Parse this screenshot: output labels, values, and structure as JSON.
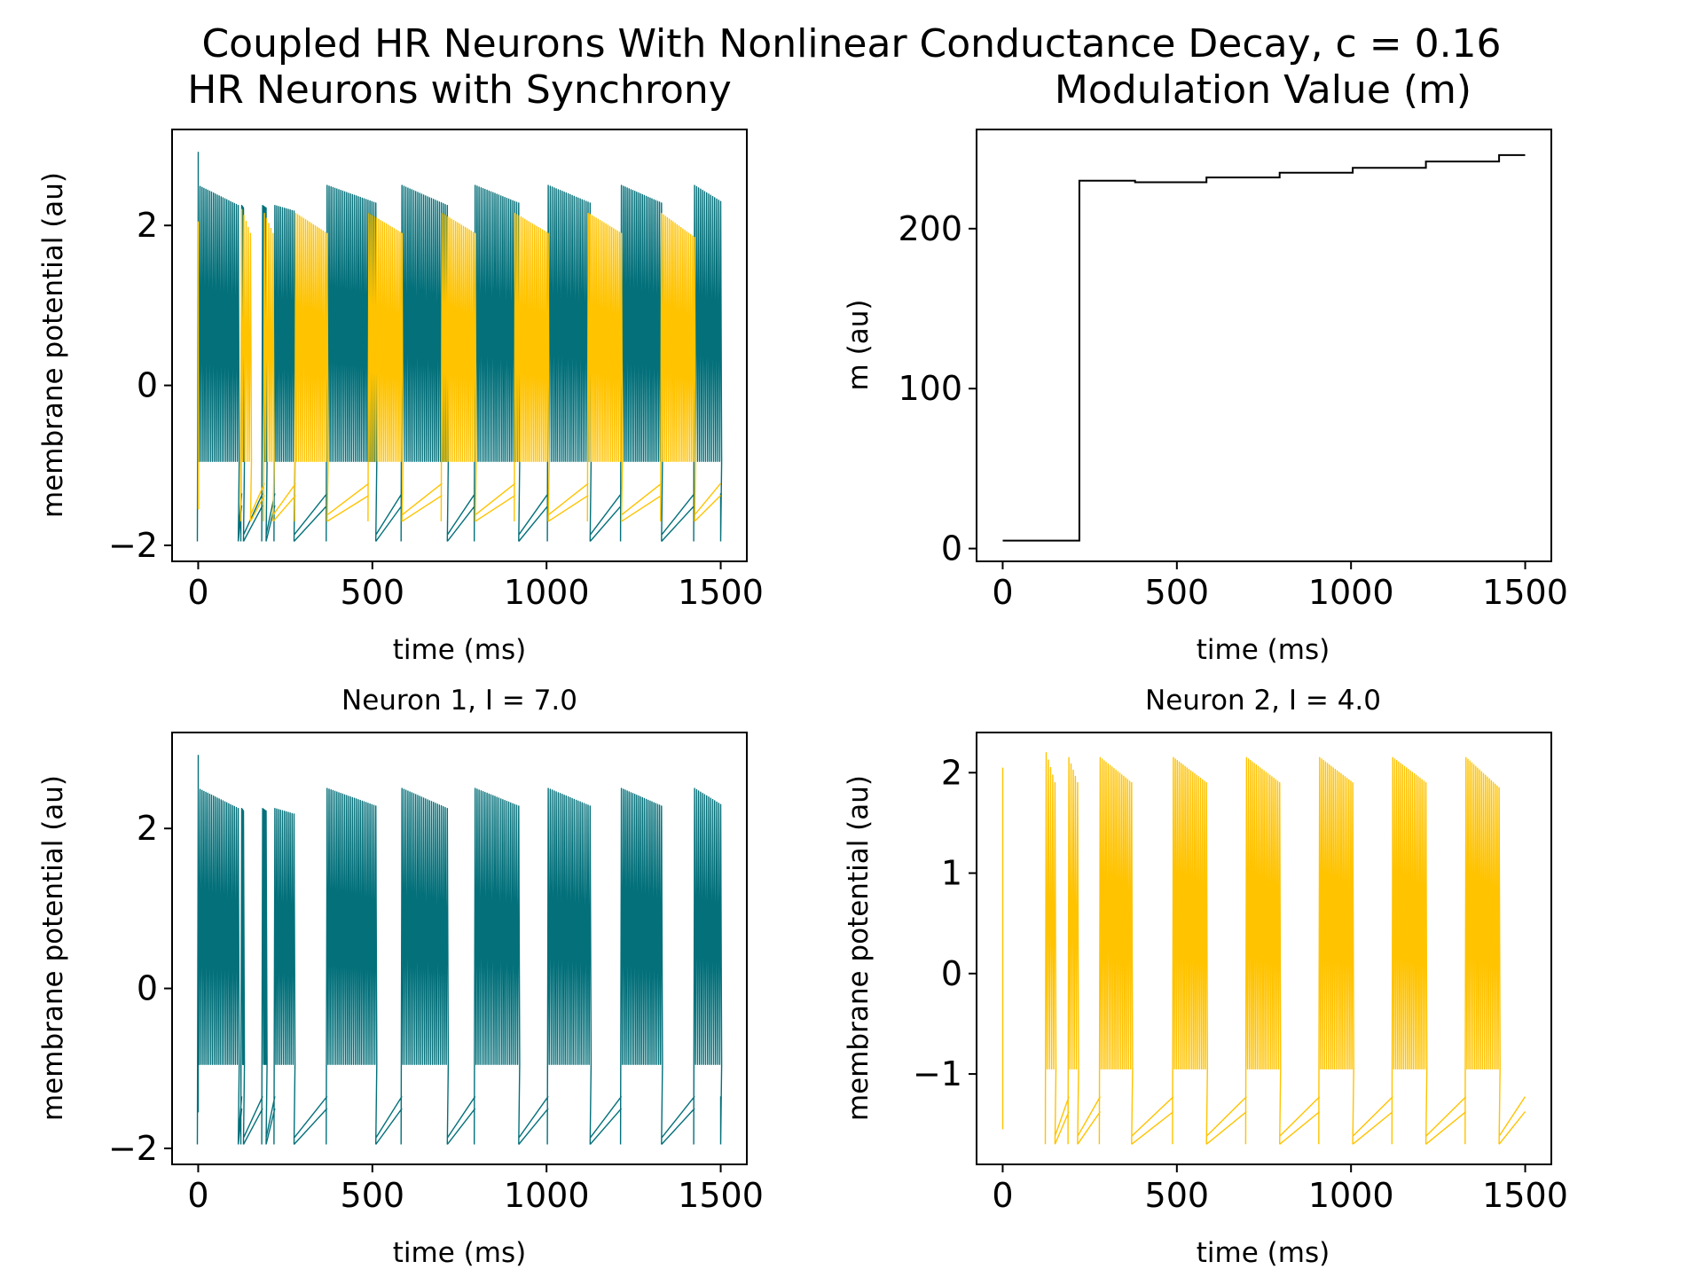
{
  "suptitle": "Coupled HR Neurons With Nonlinear Conductance Decay, c = 0.16",
  "colors": {
    "neuron1": "#03707a",
    "neuron2": "#ffc300",
    "modulation": "#000000"
  },
  "chart_data": [
    {
      "id": "sync",
      "type": "line",
      "title": "HR Neurons with Synchrony",
      "xlabel": "time (ms)",
      "ylabel": "membrane potential (au)",
      "xlim": [
        -75,
        1575
      ],
      "ylim": [
        -2.2,
        3.2
      ],
      "xticks": [
        0,
        500,
        1000,
        1500
      ],
      "xtick_labels": [
        "0",
        "500",
        "1000",
        "1500"
      ],
      "yticks": [
        -2,
        0,
        2
      ],
      "ytick_labels": [
        "−2",
        "0",
        "2"
      ],
      "series": [
        {
          "ref": "neuron1",
          "color": "#03707a",
          "bursts": [
            [
              0,
              115,
              2.5,
              2.25
            ],
            [
              125,
              130,
              2.25,
              2.22
            ],
            [
              185,
              195,
              2.25,
              2.22
            ],
            [
              220,
              275,
              2.25,
              2.18
            ],
            [
              370,
              510,
              2.5,
              2.28
            ],
            [
              585,
              715,
              2.5,
              2.25
            ],
            [
              795,
              920,
              2.5,
              2.28
            ],
            [
              1005,
              1125,
              2.5,
              2.28
            ],
            [
              1215,
              1330,
              2.5,
              2.28
            ],
            [
              1425,
              1500,
              2.5,
              2.3
            ]
          ],
          "trough": -1.95,
          "plateau": -0.95,
          "spike0": 2.92
        },
        {
          "ref": "neuron2",
          "color": "#ffc300",
          "bursts": [
            [
              125,
              150,
              2.2,
              1.9
            ],
            [
              190,
              215,
              2.15,
              1.9
            ],
            [
              280,
              370,
              2.15,
              1.9
            ],
            [
              490,
              585,
              2.15,
              1.9
            ],
            [
              700,
              795,
              2.15,
              1.9
            ],
            [
              910,
              1005,
              2.15,
              1.9
            ],
            [
              1120,
              1215,
              2.15,
              1.9
            ],
            [
              1330,
              1425,
              2.15,
              1.85
            ]
          ],
          "trough": -1.7,
          "plateau": -0.95,
          "spike0": 2.05
        }
      ]
    },
    {
      "id": "mod",
      "type": "line",
      "title": "Modulation Value (m)",
      "xlabel": "time (ms)",
      "ylabel": "m (au)",
      "xlim": [
        -75,
        1575
      ],
      "ylim": [
        -8,
        262
      ],
      "xticks": [
        0,
        500,
        1000,
        1500
      ],
      "xtick_labels": [
        "0",
        "500",
        "1000",
        "1500"
      ],
      "yticks": [
        0,
        100,
        200
      ],
      "ytick_labels": [
        "0",
        "100",
        "200"
      ],
      "series": [
        {
          "ref": "modulation",
          "color": "#000000",
          "x": [
            0,
            220,
            220,
            380,
            380,
            585,
            585,
            795,
            795,
            1005,
            1005,
            1215,
            1215,
            1425,
            1425,
            1500
          ],
          "y": [
            5,
            5,
            230,
            230,
            229,
            229,
            232,
            232,
            235,
            235,
            238,
            238,
            242,
            242,
            246,
            246
          ]
        }
      ]
    },
    {
      "id": "n1",
      "type": "line",
      "title": "Neuron 1, I = 7.0",
      "xlabel": "time (ms)",
      "ylabel": "membrane potential (au)",
      "xlim": [
        -75,
        1575
      ],
      "ylim": [
        -2.2,
        3.2
      ],
      "xticks": [
        0,
        500,
        1000,
        1500
      ],
      "xtick_labels": [
        "0",
        "500",
        "1000",
        "1500"
      ],
      "yticks": [
        -2,
        0,
        2
      ],
      "ytick_labels": [
        "−2",
        "0",
        "2"
      ],
      "series": [
        {
          "ref": "neuron1",
          "color": "#03707a",
          "bursts": [
            [
              0,
              115,
              2.5,
              2.25
            ],
            [
              125,
              130,
              2.25,
              2.22
            ],
            [
              185,
              195,
              2.25,
              2.22
            ],
            [
              220,
              275,
              2.25,
              2.18
            ],
            [
              370,
              510,
              2.5,
              2.28
            ],
            [
              585,
              715,
              2.5,
              2.25
            ],
            [
              795,
              920,
              2.5,
              2.28
            ],
            [
              1005,
              1125,
              2.5,
              2.28
            ],
            [
              1215,
              1330,
              2.5,
              2.28
            ],
            [
              1425,
              1500,
              2.5,
              2.3
            ]
          ],
          "trough": -1.95,
          "plateau": -0.95,
          "spike0": 2.92
        }
      ]
    },
    {
      "id": "n2",
      "type": "line",
      "title": "Neuron 2, I = 4.0",
      "xlabel": "time (ms)",
      "ylabel": "membrane potential (au)",
      "xlim": [
        -75,
        1575
      ],
      "ylim": [
        -1.9,
        2.4
      ],
      "xticks": [
        0,
        500,
        1000,
        1500
      ],
      "xtick_labels": [
        "0",
        "500",
        "1000",
        "1500"
      ],
      "yticks": [
        -1,
        0,
        1,
        2
      ],
      "ytick_labels": [
        "−1",
        "0",
        "1",
        "2"
      ],
      "series": [
        {
          "ref": "neuron2",
          "color": "#ffc300",
          "bursts": [
            [
              125,
              150,
              2.2,
              1.9
            ],
            [
              190,
              215,
              2.15,
              1.9
            ],
            [
              280,
              370,
              2.15,
              1.9
            ],
            [
              490,
              585,
              2.15,
              1.9
            ],
            [
              700,
              795,
              2.15,
              1.9
            ],
            [
              910,
              1005,
              2.15,
              1.9
            ],
            [
              1120,
              1215,
              2.15,
              1.9
            ],
            [
              1330,
              1425,
              2.15,
              1.85
            ]
          ],
          "trough": -1.7,
          "plateau": -0.95,
          "spike0": 2.05
        }
      ]
    }
  ]
}
